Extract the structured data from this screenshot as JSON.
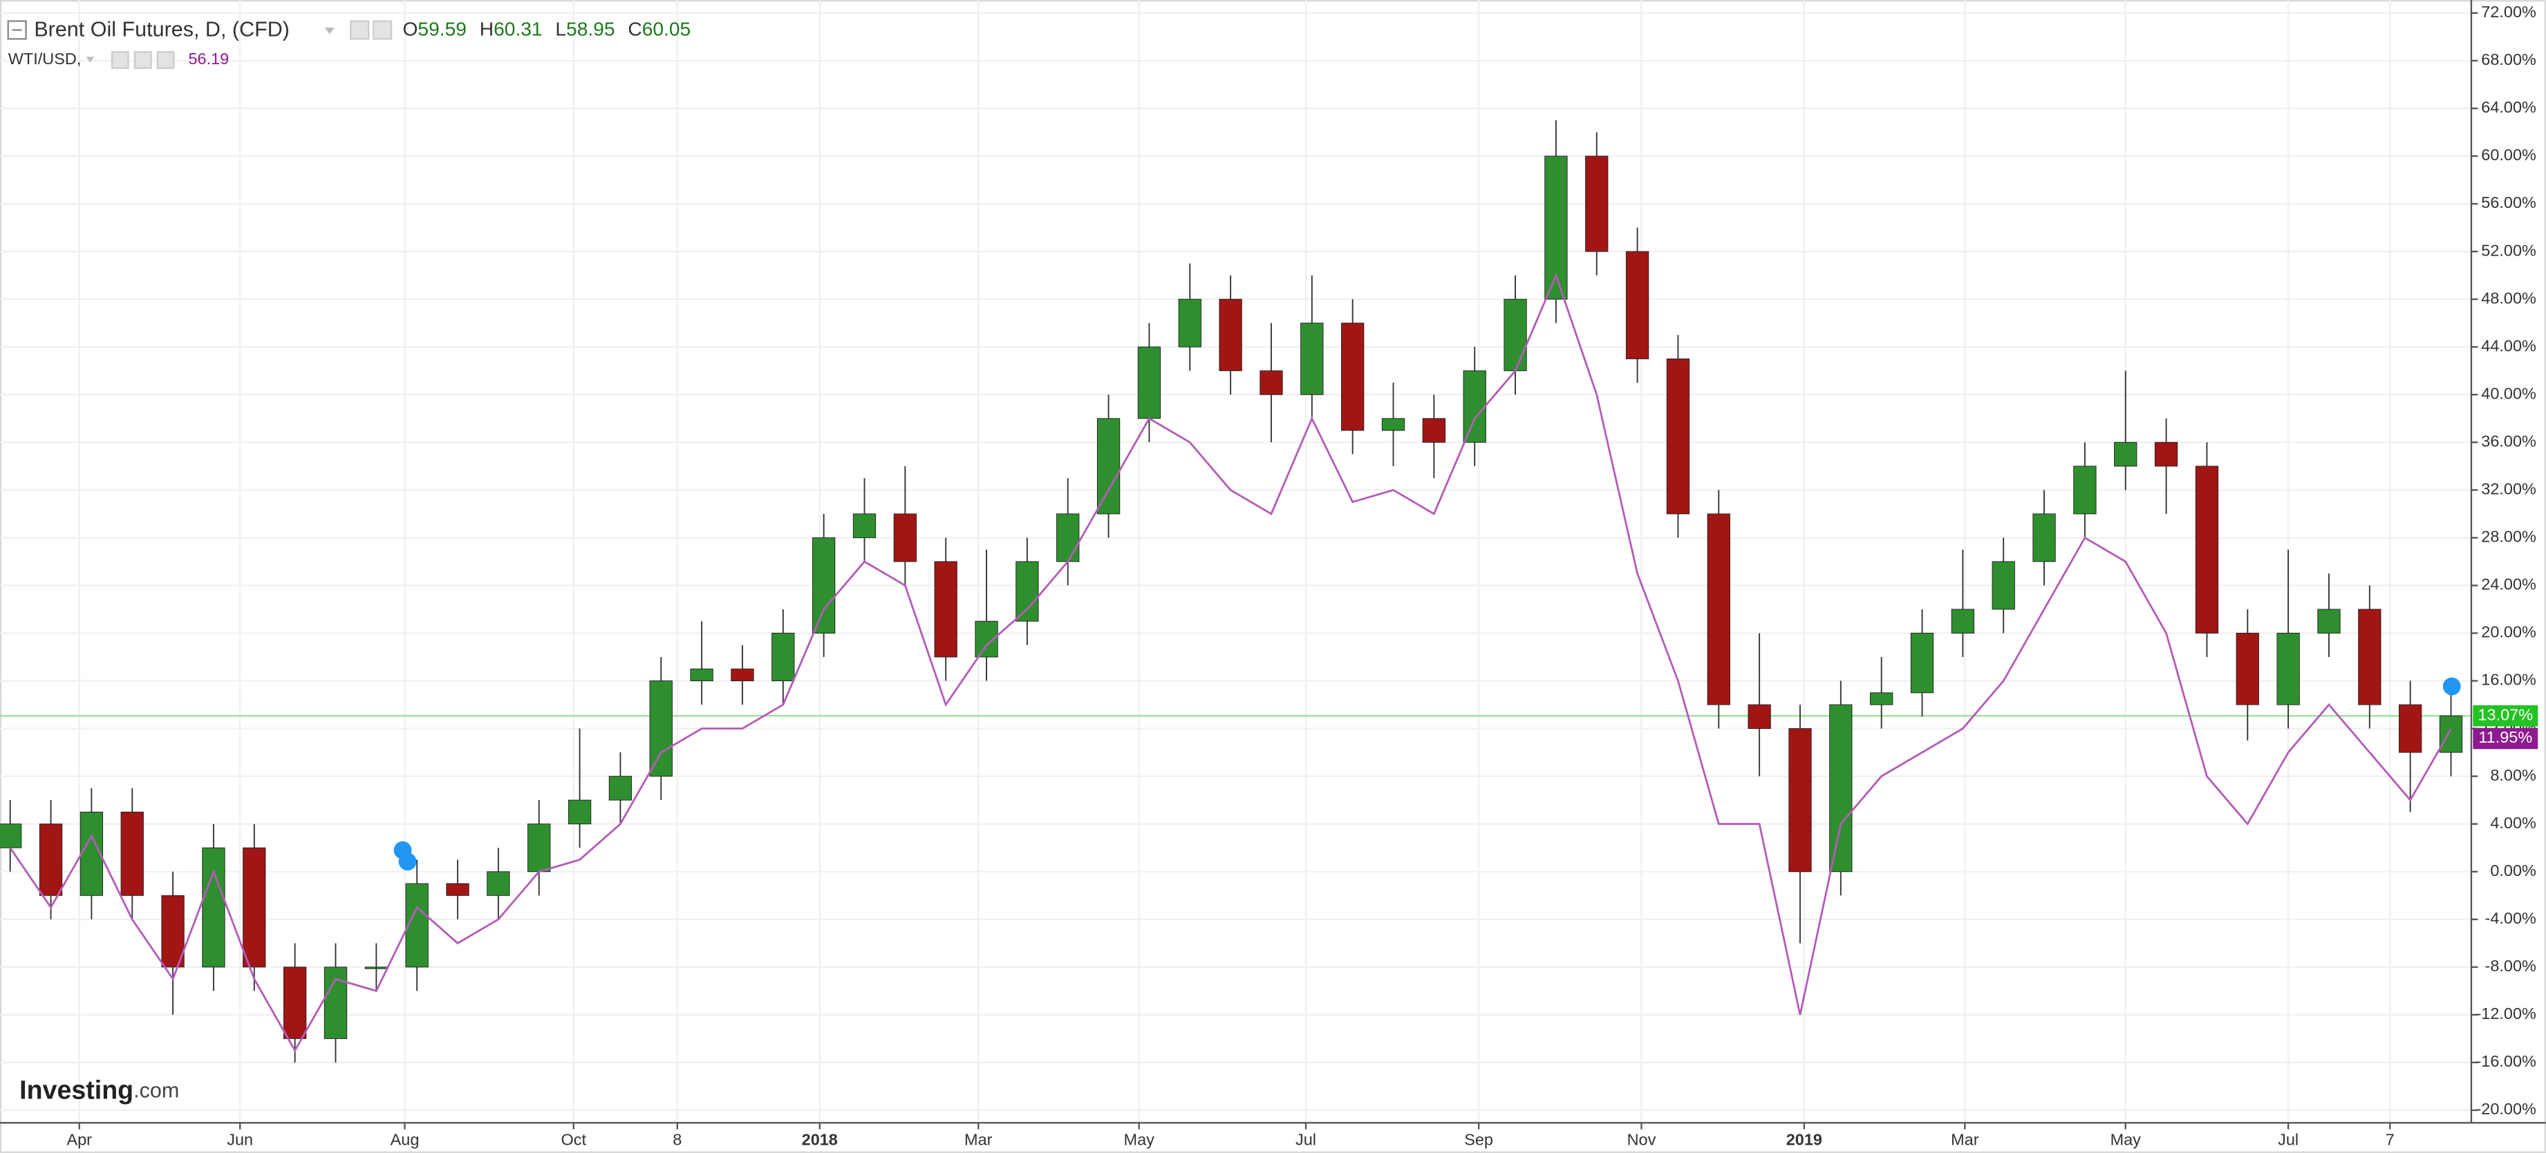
{
  "chart_data": {
    "type": "candlestick",
    "series": [
      {
        "name": "Brent Oil Futures, D, (CFD)",
        "up_color": "#2f8f2f",
        "down_color": "#a21515",
        "x": [
          0,
          2,
          4,
          6,
          8,
          10,
          12,
          14,
          16,
          18,
          20,
          22,
          24,
          26,
          28,
          30,
          32,
          34,
          36,
          38,
          40,
          42,
          44,
          46,
          48,
          50,
          52,
          54,
          56,
          58,
          60,
          62,
          64,
          66,
          68,
          70,
          72,
          74,
          76,
          78,
          80,
          82,
          84,
          86,
          88,
          90,
          92,
          94,
          96,
          98,
          100,
          102,
          104,
          106,
          108,
          110,
          112,
          114,
          116,
          118,
          120
        ],
        "open": [
          2,
          4,
          -2,
          5,
          -2,
          -8,
          2,
          -8,
          -14,
          -8,
          -8,
          -1,
          -2,
          0,
          4,
          6,
          8,
          16,
          17,
          16,
          20,
          28,
          30,
          26,
          18,
          21,
          26,
          30,
          38,
          44,
          48,
          42,
          40,
          46,
          37,
          38,
          36,
          42,
          48,
          60,
          52,
          43,
          30,
          14,
          12,
          0,
          14,
          15,
          20,
          22,
          26,
          30,
          34,
          36,
          34,
          20,
          14,
          20,
          22,
          14,
          10
        ],
        "high": [
          6,
          6,
          7,
          7,
          0,
          4,
          4,
          -6,
          -6,
          -6,
          1,
          1,
          2,
          6,
          12,
          10,
          18,
          21,
          19,
          22,
          30,
          33,
          34,
          28,
          27,
          28,
          33,
          40,
          46,
          51,
          50,
          46,
          50,
          48,
          41,
          40,
          44,
          50,
          63,
          62,
          54,
          45,
          32,
          20,
          14,
          16,
          18,
          22,
          27,
          28,
          32,
          36,
          42,
          38,
          36,
          22,
          27,
          25,
          24,
          16,
          16
        ],
        "low": [
          0,
          -4,
          -4,
          -4,
          -12,
          -10,
          -10,
          -16,
          -16,
          -10,
          -10,
          -4,
          -4,
          -2,
          2,
          4,
          6,
          14,
          14,
          14,
          18,
          26,
          24,
          16,
          16,
          19,
          24,
          28,
          36,
          42,
          40,
          36,
          38,
          35,
          34,
          33,
          34,
          40,
          46,
          50,
          41,
          28,
          12,
          8,
          -6,
          -2,
          12,
          13,
          18,
          20,
          24,
          28,
          32,
          30,
          18,
          11,
          12,
          18,
          12,
          5,
          8
        ],
        "close": [
          4,
          -2,
          5,
          -2,
          -8,
          2,
          -8,
          -14,
          -8,
          -8,
          -1,
          -2,
          0,
          4,
          6,
          8,
          16,
          17,
          16,
          20,
          28,
          30,
          26,
          18,
          21,
          26,
          30,
          38,
          44,
          48,
          42,
          40,
          46,
          37,
          38,
          36,
          42,
          48,
          60,
          52,
          43,
          30,
          14,
          12,
          0,
          14,
          15,
          20,
          22,
          26,
          30,
          34,
          36,
          34,
          20,
          14,
          20,
          22,
          14,
          10,
          13.07
        ]
      },
      {
        "name": "WTI/USD,",
        "type": "line",
        "color": "#b45cb8",
        "x": [
          0,
          2,
          4,
          6,
          8,
          10,
          12,
          14,
          16,
          18,
          20,
          22,
          24,
          26,
          28,
          30,
          32,
          34,
          36,
          38,
          40,
          42,
          44,
          46,
          48,
          50,
          52,
          54,
          56,
          58,
          60,
          62,
          64,
          66,
          68,
          70,
          72,
          74,
          76,
          78,
          80,
          82,
          84,
          86,
          88,
          90,
          92,
          94,
          96,
          98,
          100,
          102,
          104,
          106,
          108,
          110,
          112,
          114,
          116,
          118,
          120
        ],
        "values": [
          2,
          -3,
          3,
          -4,
          -9,
          0,
          -9,
          -15,
          -9,
          -10,
          -3,
          -6,
          -4,
          0,
          1,
          4,
          10,
          12,
          12,
          14,
          22,
          26,
          24,
          14,
          19,
          22,
          26,
          32,
          38,
          36,
          32,
          30,
          38,
          31,
          32,
          30,
          38,
          42,
          50,
          40,
          25,
          16,
          4,
          4,
          -12,
          4,
          8,
          10,
          12,
          16,
          22,
          28,
          26,
          20,
          8,
          4,
          10,
          14,
          10,
          6,
          11.95
        ]
      }
    ],
    "ohlc": [
      {
        "label": "O",
        "value": 59.59
      },
      {
        "label": "H",
        "value": 60.31
      },
      {
        "label": "L",
        "value": 58.95
      },
      {
        "label": "C",
        "value": 60.05
      }
    ],
    "wti_price": 56.19,
    "last_brent": {
      "value": 13.07,
      "label": "13.07%",
      "color": "#22c322"
    },
    "last_wti": {
      "value": 11.95,
      "label": "11.95%",
      "color": "#8e1a8e"
    },
    "xlim": [
      -0.5,
      121
    ],
    "xticks": [
      {
        "value": 3.4,
        "label": "Apr"
      },
      {
        "value": 11.3,
        "label": "Jun"
      },
      {
        "value": 19.4,
        "label": "Aug"
      },
      {
        "value": 27.7,
        "label": "Oct"
      },
      {
        "value": 32.8,
        "label": "8"
      },
      {
        "value": 39.8,
        "label": "2018"
      },
      {
        "value": 47.6,
        "label": "Mar"
      },
      {
        "value": 55.5,
        "label": "May"
      },
      {
        "value": 63.7,
        "label": "Jul"
      },
      {
        "value": 72.2,
        "label": "Sep"
      },
      {
        "value": 80.2,
        "label": "Nov"
      },
      {
        "value": 88.2,
        "label": "2019"
      },
      {
        "value": 96.1,
        "label": "Mar"
      },
      {
        "value": 104,
        "label": "May"
      },
      {
        "value": 112,
        "label": "Jul"
      },
      {
        "value": 117,
        "label": "7"
      }
    ],
    "ylim": [
      -21.06,
      73.09
    ],
    "yticks": [
      {
        "value": 72,
        "label": "72.00%"
      },
      {
        "value": 68,
        "label": "68.00%"
      },
      {
        "value": 64,
        "label": "64.00%"
      },
      {
        "value": 60,
        "label": "60.00%"
      },
      {
        "value": 56,
        "label": "56.00%"
      },
      {
        "value": 52,
        "label": "52.00%"
      },
      {
        "value": 48,
        "label": "48.00%"
      },
      {
        "value": 44,
        "label": "44.00%"
      },
      {
        "value": 40,
        "label": "40.00%"
      },
      {
        "value": 36,
        "label": "36.00%"
      },
      {
        "value": 32,
        "label": "32.00%"
      },
      {
        "value": 28,
        "label": "28.00%"
      },
      {
        "value": 24,
        "label": "24.00%"
      },
      {
        "value": 20,
        "label": "20.00%"
      },
      {
        "value": 16,
        "label": "16.00%"
      },
      {
        "value": 12,
        "label": "12.00%"
      },
      {
        "value": 8,
        "label": "8.00%"
      },
      {
        "value": 4,
        "label": "4.00%"
      },
      {
        "value": 0,
        "label": "0.00%"
      },
      {
        "value": -4,
        "label": "-4.00%"
      },
      {
        "value": -8,
        "label": "-8.00%"
      },
      {
        "value": -12,
        "label": "-12.00%"
      },
      {
        "value": -16,
        "label": "-16.00%"
      },
      {
        "value": -20,
        "label": "-20.00%"
      }
    ],
    "grid": true,
    "watermark": {
      "brand": "Investing",
      "suffix": ".com"
    }
  }
}
